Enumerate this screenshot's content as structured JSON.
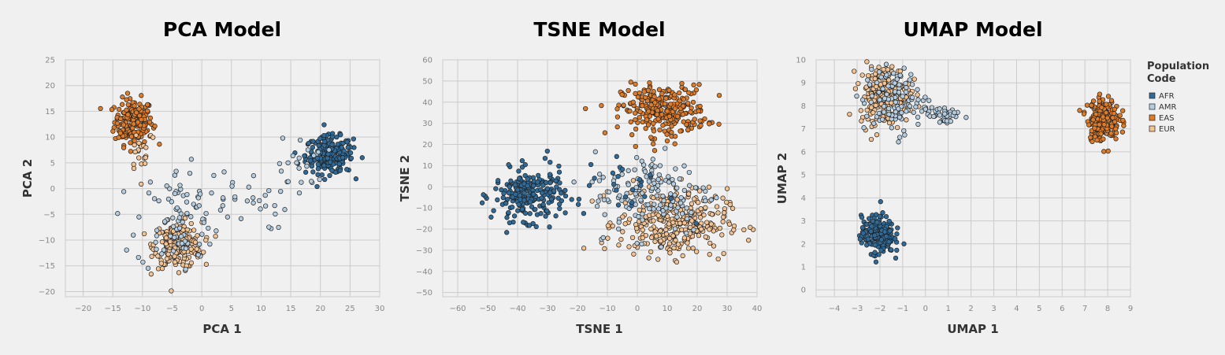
{
  "legend": {
    "title_line1": "Population",
    "title_line2": "Code",
    "items": [
      {
        "label": "AFR",
        "color": "#2f6b9a"
      },
      {
        "label": "AMR",
        "color": "#b5cde0"
      },
      {
        "label": "EAS",
        "color": "#e07b27"
      },
      {
        "label": "EUR",
        "color": "#f5c392"
      }
    ]
  },
  "chart_data": [
    {
      "type": "scatter",
      "title": "PCA Model",
      "xlabel": "PCA 1",
      "ylabel": "PCA 2",
      "xlim": [
        -23,
        30
      ],
      "ylim": [
        -21,
        25
      ],
      "xticks": [
        -20,
        -15,
        -10,
        -5,
        0,
        5,
        10,
        15,
        20,
        25,
        30
      ],
      "yticks": [
        -20,
        -15,
        -10,
        -5,
        0,
        5,
        10,
        15,
        20,
        25
      ],
      "grid": true,
      "clusters": [
        {
          "population": "EAS",
          "center": [
            -11.5,
            13
          ],
          "spread": [
            1.6,
            2.2
          ],
          "count": 200
        },
        {
          "population": "AFR",
          "center": [
            21.5,
            6.5
          ],
          "spread": [
            2.0,
            1.8
          ],
          "count": 230
        },
        {
          "population": "EUR",
          "center": [
            -4,
            -11
          ],
          "spread": [
            2.0,
            2.2
          ],
          "count": 220
        },
        {
          "population": "EUR",
          "center": [
            -10,
            8
          ],
          "spread": [
            1.2,
            2.5
          ],
          "count": 20
        },
        {
          "population": "AMR",
          "center": [
            -4,
            -6
          ],
          "spread": [
            3.5,
            5
          ],
          "count": 90
        },
        {
          "population": "AMR",
          "center": [
            7,
            -2
          ],
          "spread": [
            4,
            3
          ],
          "count": 30
        },
        {
          "population": "AMR",
          "center": [
            17,
            5
          ],
          "spread": [
            2,
            2.5
          ],
          "count": 20
        }
      ]
    },
    {
      "type": "scatter",
      "title": "TSNE Model",
      "xlabel": "TSNE 1",
      "ylabel": "TSNE 2",
      "xlim": [
        -65,
        40
      ],
      "ylim": [
        -52,
        60
      ],
      "xticks": [
        -60,
        -50,
        -40,
        -30,
        -20,
        -10,
        0,
        10,
        20,
        30,
        40
      ],
      "yticks": [
        -50,
        -40,
        -30,
        -20,
        -10,
        0,
        10,
        20,
        30,
        40,
        50,
        60
      ],
      "grid": true,
      "clusters": [
        {
          "population": "EAS",
          "center": [
            9,
            36
          ],
          "spread": [
            7,
            6
          ],
          "count": 280
        },
        {
          "population": "AFR",
          "center": [
            -36,
            -4
          ],
          "spread": [
            6,
            6
          ],
          "count": 230
        },
        {
          "population": "EUR",
          "center": [
            12,
            -17
          ],
          "spread": [
            9,
            8
          ],
          "count": 320
        },
        {
          "population": "AMR",
          "center": [
            5,
            -3
          ],
          "spread": [
            10,
            10
          ],
          "count": 140
        },
        {
          "population": "AFR",
          "center": [
            -3,
            0
          ],
          "spread": [
            8,
            8
          ],
          "count": 25
        }
      ]
    },
    {
      "type": "scatter",
      "title": "UMAP Model",
      "xlabel": "UMAP 1",
      "ylabel": "UMAP 2",
      "xlim": [
        -4.8,
        9
      ],
      "ylim": [
        -0.3,
        10
      ],
      "xticks": [
        -4,
        -3,
        -2,
        -1,
        0,
        1,
        2,
        3,
        4,
        5,
        6,
        7,
        8,
        9
      ],
      "yticks": [
        0,
        1,
        2,
        3,
        4,
        5,
        6,
        7,
        8,
        9,
        10
      ],
      "grid": true,
      "clusters": [
        {
          "population": "EUR",
          "center": [
            -1.8,
            8.5
          ],
          "spread": [
            0.55,
            0.65
          ],
          "count": 230
        },
        {
          "population": "AMR",
          "center": [
            -1.3,
            8.2
          ],
          "spread": [
            0.7,
            0.7
          ],
          "count": 110
        },
        {
          "population": "AMR",
          "center": [
            0.8,
            7.6
          ],
          "spread": [
            0.35,
            0.25
          ],
          "count": 35
        },
        {
          "population": "AFR",
          "center": [
            -2.1,
            2.4
          ],
          "spread": [
            0.35,
            0.4
          ],
          "count": 240
        },
        {
          "population": "EAS",
          "center": [
            7.8,
            7.4
          ],
          "spread": [
            0.35,
            0.45
          ],
          "count": 220
        }
      ]
    }
  ]
}
